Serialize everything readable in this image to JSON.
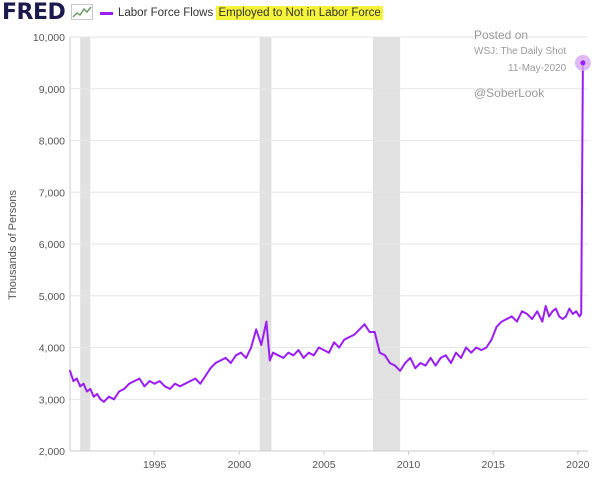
{
  "header": {
    "logo_text": "FRED",
    "logo_icon": "fred-chart-icon",
    "series_label": "Labor Force Flows",
    "highlight_label": "Employed to Not in Labor Force"
  },
  "watermark": {
    "line1": "Posted on",
    "line2": "WSJ: The Daily Shot",
    "line3": "11-May-2020",
    "line4": "@SoberLook"
  },
  "colors": {
    "series": "#9a1ef2",
    "recession": "#e1e1e1",
    "highlight": "#f5f23a",
    "logo": "#1a1a4d",
    "logo_icon": "#6a9a6a",
    "last_point_halo": "#d8a8f5"
  },
  "chart_data": {
    "type": "line",
    "title": "",
    "xlabel": "",
    "ylabel": "Thousands of Persons",
    "xlim": [
      1990.0,
      2020.6
    ],
    "ylim": [
      2000,
      10000
    ],
    "yticks": [
      2000,
      3000,
      4000,
      5000,
      6000,
      7000,
      8000,
      9000,
      10000
    ],
    "ytick_labels": [
      "2,000",
      "3,000",
      "4,000",
      "5,000",
      "6,000",
      "7,000",
      "8,000",
      "9,000",
      "10,000"
    ],
    "xticks": [
      1995,
      2000,
      2005,
      2010,
      2015,
      2020
    ],
    "xtick_labels": [
      "1995",
      "2000",
      "2005",
      "2010",
      "2015",
      "2020"
    ],
    "grid": true,
    "legend": "top-left",
    "recessions": [
      [
        1990.6,
        1991.2
      ],
      [
        2001.2,
        2001.9
      ],
      [
        2007.9,
        2009.5
      ]
    ],
    "series": [
      {
        "name": "Employed to Not in Labor Force",
        "x": [
          1990.0,
          1990.2,
          1990.4,
          1990.6,
          1990.8,
          1991.0,
          1991.2,
          1991.4,
          1991.6,
          1991.8,
          1992.0,
          1992.3,
          1992.6,
          1992.9,
          1993.2,
          1993.5,
          1993.8,
          1994.1,
          1994.4,
          1994.7,
          1995.0,
          1995.3,
          1995.6,
          1995.9,
          1996.2,
          1996.5,
          1996.8,
          1997.1,
          1997.4,
          1997.7,
          1998.0,
          1998.3,
          1998.6,
          1998.9,
          1999.2,
          1999.5,
          1999.8,
          2000.1,
          2000.4,
          2000.7,
          2001.0,
          2001.3,
          2001.6,
          2001.8,
          2002.0,
          2002.3,
          2002.6,
          2002.9,
          2003.2,
          2003.5,
          2003.8,
          2004.1,
          2004.4,
          2004.7,
          2005.0,
          2005.3,
          2005.6,
          2005.9,
          2006.2,
          2006.5,
          2006.8,
          2007.1,
          2007.4,
          2007.7,
          2008.0,
          2008.3,
          2008.6,
          2008.9,
          2009.2,
          2009.5,
          2009.8,
          2010.1,
          2010.4,
          2010.7,
          2011.0,
          2011.3,
          2011.6,
          2011.9,
          2012.2,
          2012.5,
          2012.8,
          2013.1,
          2013.4,
          2013.7,
          2014.0,
          2014.3,
          2014.6,
          2014.9,
          2015.2,
          2015.5,
          2015.8,
          2016.1,
          2016.4,
          2016.7,
          2017.0,
          2017.3,
          2017.6,
          2017.9,
          2018.1,
          2018.3,
          2018.5,
          2018.7,
          2018.9,
          2019.1,
          2019.3,
          2019.5,
          2019.7,
          2019.9,
          2020.1,
          2020.2,
          2020.3
        ],
        "y": [
          3550,
          3350,
          3400,
          3250,
          3300,
          3150,
          3200,
          3050,
          3100,
          3000,
          2950,
          3050,
          3000,
          3150,
          3200,
          3300,
          3350,
          3400,
          3250,
          3350,
          3300,
          3350,
          3250,
          3200,
          3300,
          3250,
          3300,
          3350,
          3400,
          3300,
          3450,
          3600,
          3700,
          3750,
          3800,
          3700,
          3850,
          3900,
          3800,
          4000,
          4350,
          4050,
          4500,
          3750,
          3900,
          3850,
          3800,
          3900,
          3850,
          3950,
          3800,
          3900,
          3850,
          4000,
          3950,
          3900,
          4100,
          4000,
          4150,
          4200,
          4250,
          4350,
          4450,
          4300,
          4300,
          3900,
          3850,
          3700,
          3650,
          3550,
          3700,
          3800,
          3600,
          3700,
          3650,
          3800,
          3650,
          3800,
          3850,
          3700,
          3900,
          3800,
          4000,
          3900,
          4000,
          3950,
          4000,
          4150,
          4400,
          4500,
          4550,
          4600,
          4500,
          4700,
          4650,
          4550,
          4700,
          4500,
          4800,
          4600,
          4700,
          4750,
          4600,
          4550,
          4600,
          4750,
          4650,
          4700,
          4600,
          4650,
          9500
        ]
      }
    ]
  }
}
